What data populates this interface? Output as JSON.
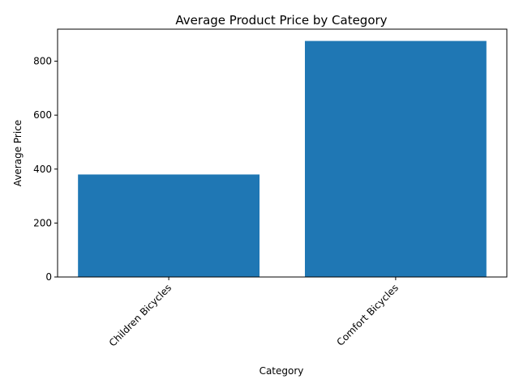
{
  "chart_data": {
    "type": "bar",
    "title": "Average Product Price by Category",
    "xlabel": "Category",
    "ylabel": "Average Price",
    "categories": [
      "Children Bicycles",
      "Comfort Bicycles"
    ],
    "values": [
      380,
      875
    ],
    "ylim": [
      0,
      918.75
    ],
    "yticks": [
      0,
      200,
      400,
      600,
      800
    ],
    "ytick_labels": [
      "0",
      "200",
      "400",
      "600",
      "800"
    ],
    "bar_color": "#1f77b4",
    "grid": false,
    "legend": "none"
  }
}
